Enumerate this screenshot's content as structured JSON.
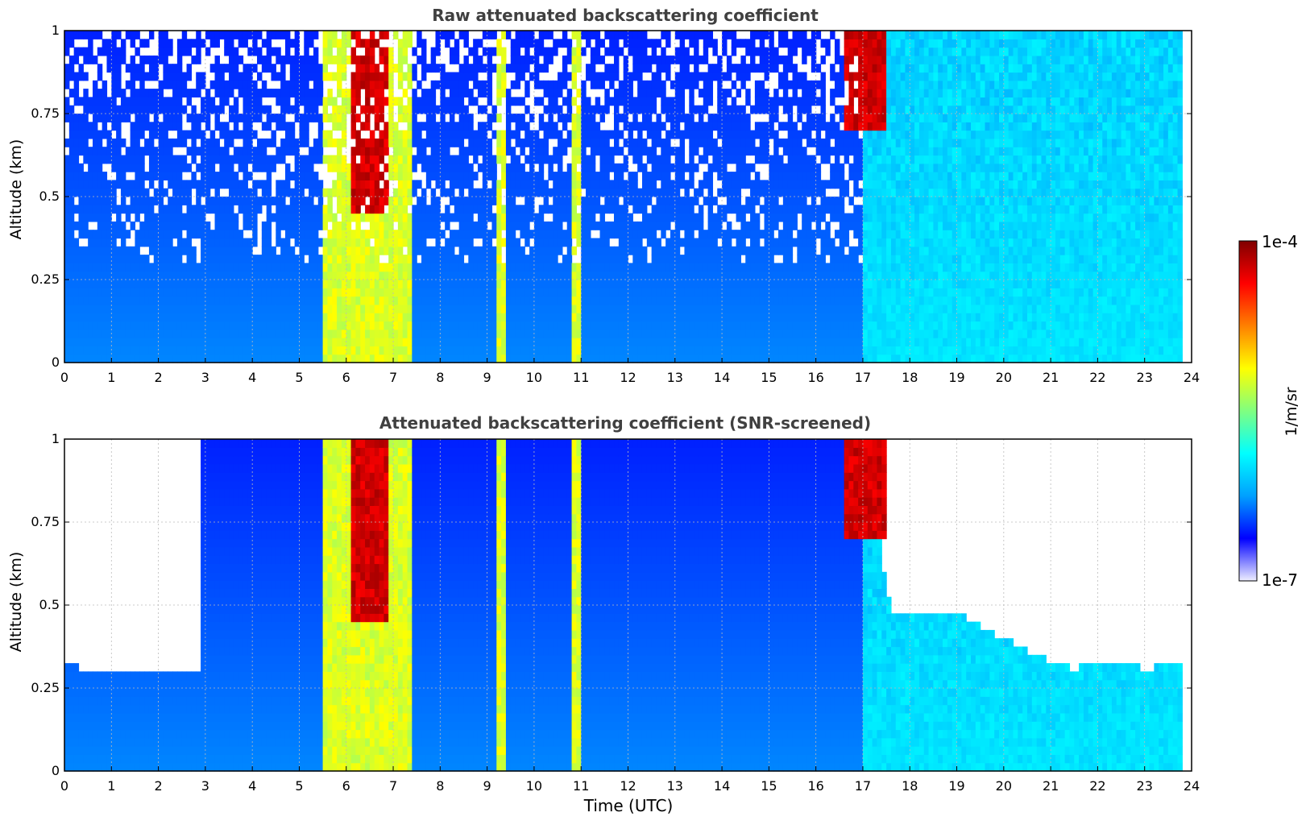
{
  "chart_data": [
    {
      "type": "heatmap",
      "title": "Raw attenuated backscattering coefficient",
      "xlabel": "",
      "ylabel": "Altitude (km)",
      "xlim": [
        0,
        24
      ],
      "ylim": [
        0,
        1
      ],
      "xticks": [
        "0",
        "1",
        "2",
        "3",
        "4",
        "5",
        "6",
        "7",
        "8",
        "9",
        "10",
        "11",
        "12",
        "13",
        "14",
        "15",
        "16",
        "17",
        "18",
        "19",
        "20",
        "21",
        "22",
        "23",
        "24"
      ],
      "yticks": [
        "0",
        "0.25",
        "0.5",
        "0.75",
        "1"
      ],
      "grid": true,
      "color_scale": "log",
      "notes": "",
      "features": [
        {
          "x_start": 5.5,
          "x_end": 7.4,
          "top_altitude": 1.0,
          "level": "high"
        },
        {
          "x_start": 6.1,
          "x_end": 6.9,
          "top_altitude": 1.0,
          "bottom_altitude": 0.45,
          "level": "max"
        },
        {
          "x_start": 9.2,
          "x_end": 9.4,
          "top_altitude": 1.0,
          "level": "high"
        },
        {
          "x_start": 10.8,
          "x_end": 11.0,
          "top_altitude": 1.0,
          "level": "high"
        },
        {
          "x_start": 16.6,
          "x_end": 17.5,
          "top_altitude": 1.0,
          "bottom_altitude": 0.7,
          "level": "max"
        },
        {
          "x_start": 17.0,
          "x_end": 23.8,
          "top_altitude": 1.0,
          "level": "elevated"
        }
      ],
      "data_end_hour": 23.8
    },
    {
      "type": "heatmap",
      "title": "Attenuated backscattering coefficient (SNR-screened)",
      "xlabel": "Time (UTC)",
      "ylabel": "Altitude (km)",
      "xlim": [
        0,
        24
      ],
      "ylim": [
        0,
        1
      ],
      "xticks": [
        "0",
        "1",
        "2",
        "3",
        "4",
        "5",
        "6",
        "7",
        "8",
        "9",
        "10",
        "11",
        "12",
        "13",
        "14",
        "15",
        "16",
        "17",
        "18",
        "19",
        "20",
        "21",
        "22",
        "23",
        "24"
      ],
      "yticks": [
        "0",
        "0.25",
        "0.5",
        "0.75",
        "1"
      ],
      "grid": true,
      "color_scale": "log",
      "screened_top_altitude": [
        {
          "x": 0.0,
          "y": 0.33
        },
        {
          "x": 0.5,
          "y": 0.3
        },
        {
          "x": 1.5,
          "y": 0.3
        },
        {
          "x": 2.9,
          "y": 0.29
        },
        {
          "x": 3.0,
          "y": 1.0
        },
        {
          "x": 17.0,
          "y": 1.0
        },
        {
          "x": 17.6,
          "y": 0.48
        },
        {
          "x": 19.0,
          "y": 0.48
        },
        {
          "x": 20.0,
          "y": 0.4
        },
        {
          "x": 21.0,
          "y": 0.33
        },
        {
          "x": 21.5,
          "y": 0.31
        },
        {
          "x": 22.5,
          "y": 0.33
        },
        {
          "x": 23.0,
          "y": 0.31
        },
        {
          "x": 23.8,
          "y": 0.32
        }
      ],
      "data_end_hour": 23.8
    }
  ],
  "colorbar": {
    "label": "1/m/sr",
    "max_label": "1e-4",
    "min_label": "1e-7",
    "colors": [
      "#eeeeff",
      "#0000ff",
      "#00a0ff",
      "#00ffff",
      "#80ff80",
      "#ffff00",
      "#ff8000",
      "#ff0000",
      "#800000"
    ]
  }
}
